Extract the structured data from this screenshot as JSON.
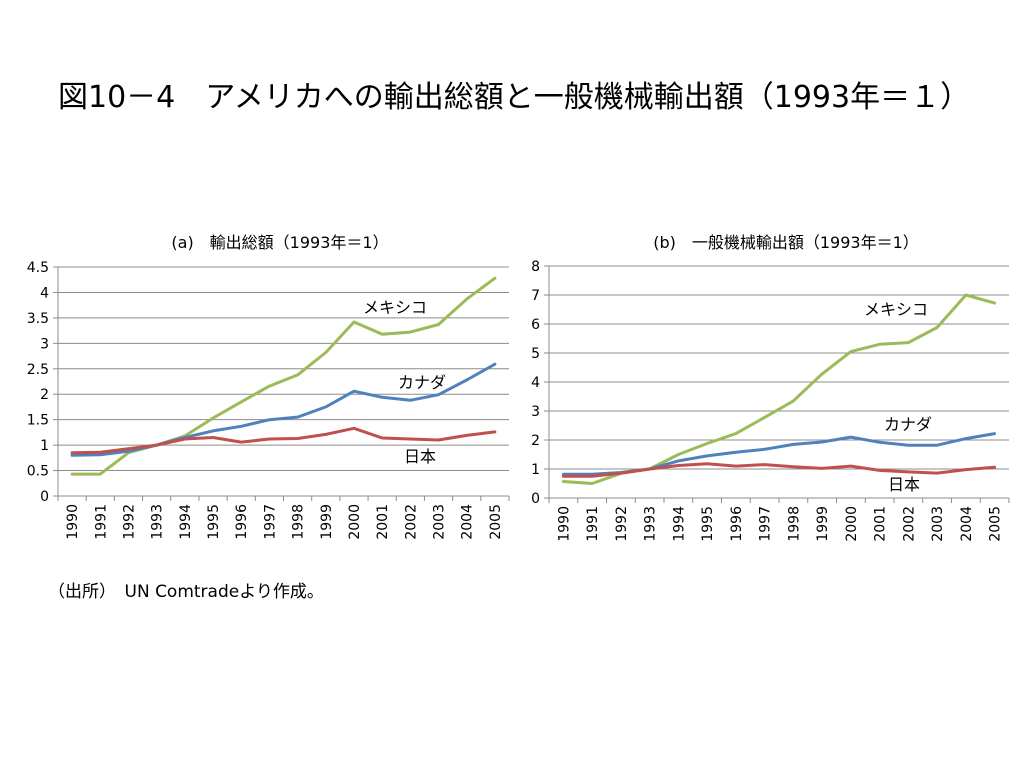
{
  "slide": {
    "title": "図10－4　アメリカへの輸出総額と一般機械輸出額（1993年＝１）",
    "source": "（出所）　UN Comtradeより作成。"
  },
  "chart_data": [
    {
      "type": "line",
      "title": "(a)　輸出総額（1993年＝1）",
      "x": [
        "1990",
        "1991",
        "1992",
        "1993",
        "1994",
        "1995",
        "1996",
        "1997",
        "1998",
        "1999",
        "2000",
        "2001",
        "2002",
        "2003",
        "2004",
        "2005"
      ],
      "ylim": [
        0,
        4.5
      ],
      "yticks": [
        0,
        0.5,
        1,
        1.5,
        2,
        2.5,
        3,
        3.5,
        4,
        4.5
      ],
      "ytick_labels": [
        "0",
        "0.5",
        "1",
        "1.5",
        "2",
        "2.5",
        "3",
        "3.5",
        "4",
        "4.5"
      ],
      "grid": true,
      "legend": "inline labels",
      "series": [
        {
          "name": "メキシコ",
          "color": "#9bbb59",
          "values": [
            0.43,
            0.43,
            0.85,
            1.0,
            1.18,
            1.53,
            1.85,
            2.16,
            2.38,
            2.82,
            3.42,
            3.18,
            3.22,
            3.37,
            3.87,
            4.28
          ]
        },
        {
          "name": "カナダ",
          "color": "#4f81bd",
          "values": [
            0.8,
            0.81,
            0.88,
            1.0,
            1.15,
            1.28,
            1.37,
            1.5,
            1.55,
            1.75,
            2.06,
            1.94,
            1.88,
            1.99,
            2.28,
            2.59
          ]
        },
        {
          "name": "日本",
          "color": "#c0504d",
          "values": [
            0.85,
            0.86,
            0.93,
            1.0,
            1.12,
            1.15,
            1.06,
            1.12,
            1.13,
            1.21,
            1.33,
            1.14,
            1.12,
            1.1,
            1.19,
            1.26
          ]
        }
      ]
    },
    {
      "type": "line",
      "title": "(b)　一般機械輸出額（1993年＝1）",
      "x": [
        "1990",
        "1991",
        "1992",
        "1993",
        "1994",
        "1995",
        "1996",
        "1997",
        "1998",
        "1999",
        "2000",
        "2001",
        "2002",
        "2003",
        "2004",
        "2005"
      ],
      "ylim": [
        0,
        8
      ],
      "yticks": [
        0,
        1,
        2,
        3,
        4,
        5,
        6,
        7,
        8
      ],
      "ytick_labels": [
        "0",
        "1",
        "2",
        "3",
        "4",
        "5",
        "6",
        "7",
        "8"
      ],
      "grid": true,
      "legend": "inline labels",
      "series": [
        {
          "name": "メキシコ",
          "color": "#9bbb59",
          "values": [
            0.57,
            0.5,
            0.85,
            1.0,
            1.5,
            1.88,
            2.22,
            2.78,
            3.35,
            4.28,
            5.05,
            5.3,
            5.36,
            5.88,
            7.0,
            6.72
          ]
        },
        {
          "name": "カナダ",
          "color": "#4f81bd",
          "values": [
            0.82,
            0.82,
            0.88,
            1.0,
            1.28,
            1.45,
            1.58,
            1.68,
            1.85,
            1.93,
            2.1,
            1.92,
            1.82,
            1.82,
            2.05,
            2.22
          ]
        },
        {
          "name": "日本",
          "color": "#c0504d",
          "values": [
            0.75,
            0.75,
            0.86,
            1.0,
            1.12,
            1.18,
            1.1,
            1.15,
            1.08,
            1.02,
            1.1,
            0.95,
            0.9,
            0.86,
            0.98,
            1.06
          ]
        }
      ]
    }
  ]
}
